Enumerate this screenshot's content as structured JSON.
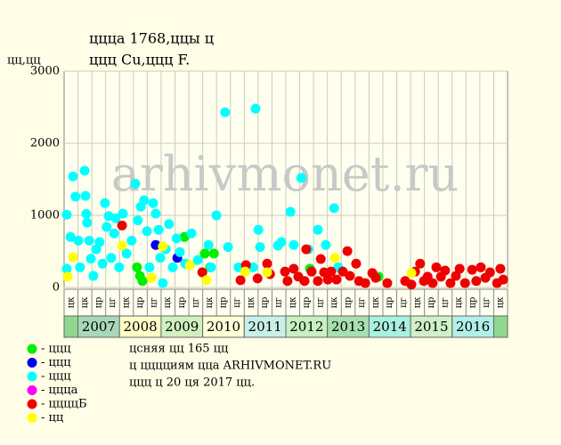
{
  "chart_data": {
    "type": "scatter",
    "title": "ццца 1768,ццы ц",
    "subtitle": "ццц Cu,ццц F.",
    "y_label": "цц,цц",
    "watermark": "arhivmonet.ru",
    "xlim": [
      2006.667,
      2017.333
    ],
    "xticks": [
      2007,
      2008,
      2009,
      2010,
      2011,
      2012,
      2013,
      2014,
      2015,
      2016
    ],
    "year_colors": [
      "#a8d8b8",
      "#ffffc8",
      "#d0f0c0",
      "#ffffd8",
      "#c8f0e8",
      "#c8f0c0",
      "#a8e0b0",
      "#a8f0e0",
      "#d0f0c8",
      "#b0f0e8"
    ],
    "column_labels": [
      "цк",
      "цк",
      "цр",
      "цг",
      "цк",
      "цр",
      "цг",
      "цк",
      "цр",
      "цг",
      "цк",
      "цр",
      "цг",
      "цк",
      "цр",
      "цг",
      "цк",
      "цр",
      "цг",
      "цк",
      "цр",
      "цг",
      "цк",
      "цр",
      "цг",
      "цк",
      "цр",
      "цг",
      "цк",
      "цр",
      "цг",
      "цк"
    ],
    "ylim": [
      0,
      3000
    ],
    "yticks": [
      0,
      1000,
      2000,
      3000
    ],
    "grid": true,
    "series": [
      {
        "name": "- ццц",
        "color": "#00ee00",
        "x": [
          2008.42,
          2008.49,
          2008.55,
          2009.56,
          2010.05,
          2010.27,
          2010.18,
          2012.58,
          2014.23
        ],
        "values": [
          280,
          160,
          90,
          700,
          470,
          470,
          280,
          260,
          150
        ]
      },
      {
        "name": "- ццц",
        "color": "#0000ee",
        "x": [
          2008.87,
          2009.39
        ],
        "values": [
          590,
          410
        ]
      },
      {
        "name": "- ццц",
        "color": "#00ffff",
        "x": [
          2006.73,
          2006.73,
          2006.82,
          2006.88,
          2006.94,
          2007.01,
          2007.05,
          2007.16,
          2007.18,
          2007.2,
          2007.22,
          2007.27,
          2007.31,
          2007.37,
          2007.44,
          2007.52,
          2007.59,
          2007.65,
          2007.69,
          2007.74,
          2007.8,
          2007.87,
          2007.91,
          2007.99,
          2008.08,
          2008.17,
          2008.29,
          2008.38,
          2008.44,
          2008.51,
          2008.59,
          2008.66,
          2008.72,
          2008.81,
          2008.87,
          2008.94,
          2008.98,
          2009.04,
          2009.11,
          2009.19,
          2009.28,
          2009.37,
          2009.45,
          2009.58,
          2009.73,
          2009.88,
          2010.14,
          2010.2,
          2010.33,
          2010.54,
          2010.61,
          2010.86,
          2011.21,
          2011.27,
          2011.34,
          2011.38,
          2011.81,
          2011.89,
          2012.11,
          2012.19,
          2012.37,
          2012.54,
          2012.77,
          2012.96,
          2013.16,
          2013.26
        ],
        "values": [
          260,
          1010,
          700,
          1540,
          1260,
          650,
          280,
          1620,
          1270,
          1020,
          900,
          650,
          400,
          160,
          530,
          630,
          330,
          1170,
          840,
          990,
          410,
          750,
          960,
          280,
          1025,
          470,
          650,
          1440,
          930,
          1120,
          1210,
          780,
          280,
          1170,
          1025,
          800,
          410,
          60,
          530,
          880,
          280,
          680,
          490,
          330,
          750,
          380,
          590,
          280,
          1000,
          2430,
          560,
          280,
          280,
          2480,
          800,
          560,
          580,
          630,
          1050,
          590,
          1520,
          530,
          800,
          590,
          1100,
          280
        ]
      },
      {
        "name": "- цццa",
        "color": "#ff00ff",
        "x": [],
        "values": []
      },
      {
        "name": "- ццццБ",
        "color": "#ee0000",
        "x": [
          2008.06,
          2009.99,
          2010.91,
          2011.04,
          2011.32,
          2011.55,
          2011.62,
          2011.98,
          2012.04,
          2012.19,
          2012.3,
          2012.45,
          2012.49,
          2012.62,
          2012.77,
          2012.84,
          2012.92,
          2013.01,
          2013.09,
          2013.22,
          2013.37,
          2013.48,
          2013.54,
          2013.69,
          2013.76,
          2013.91,
          2014.08,
          2014.16,
          2014.44,
          2014.87,
          2015.02,
          2015.11,
          2015.23,
          2015.32,
          2015.41,
          2015.53,
          2015.62,
          2015.73,
          2015.83,
          2015.96,
          2016.09,
          2016.18,
          2016.31,
          2016.48,
          2016.58,
          2016.69,
          2016.8,
          2016.91,
          2017.08,
          2017.16,
          2017.23
        ],
        "values": [
          860,
          210,
          100,
          310,
          125,
          330,
          185,
          220,
          90,
          260,
          150,
          90,
          530,
          220,
          90,
          395,
          210,
          110,
          220,
          110,
          220,
          505,
          160,
          330,
          90,
          60,
          200,
          135,
          60,
          90,
          40,
          220,
          330,
          90,
          150,
          60,
          280,
          150,
          235,
          60,
          160,
          260,
          60,
          245,
          90,
          280,
          135,
          210,
          60,
          260,
          110
        ]
      },
      {
        "name": "- цц",
        "color": "#ffff00",
        "x": [
          2006.75,
          2006.88,
          2008.06,
          2008.77,
          2009.04,
          2009.69,
          2010.09,
          2011.02,
          2011.55,
          2013.18,
          2015.02
        ],
        "values": [
          150,
          420,
          580,
          135,
          570,
          310,
          100,
          220,
          210,
          410,
          200
        ]
      }
    ],
    "notes": [
      "цcняя цц 165 цц",
      "ц цццциям цца ARHIVMONET.RU",
      "ццц ц 20 ця 2017 цц."
    ]
  }
}
